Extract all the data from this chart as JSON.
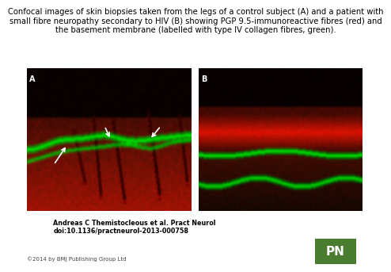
{
  "title_line1": "Confocal images of skin biopsies taken from the legs of a control subject (A) and a patient with",
  "title_line2": "small fibre neuropathy secondary to HIV (B) showing PGP 9.5-immunoreactive fibres (red) and",
  "title_line3": "the basement membrane (labelled with type IV collagen fibres, green).",
  "label_A": "A",
  "label_B": "B",
  "author_line1": "Andreas C Themistocleous et al. Pract Neurol",
  "author_line2": "doi:10.1136/practneurol-2013-000758",
  "copyright": "©2014 by BMJ Publishing Group Ltd",
  "pn_text": "PN",
  "pn_bg_color": "#4a7c2f",
  "pn_text_color": "#ffffff",
  "bg_color": "#ffffff",
  "title_fontsize": 7.2,
  "label_fontsize": 7,
  "author_fontsize": 5.8,
  "copyright_fontsize": 5,
  "pn_fontsize": 11
}
